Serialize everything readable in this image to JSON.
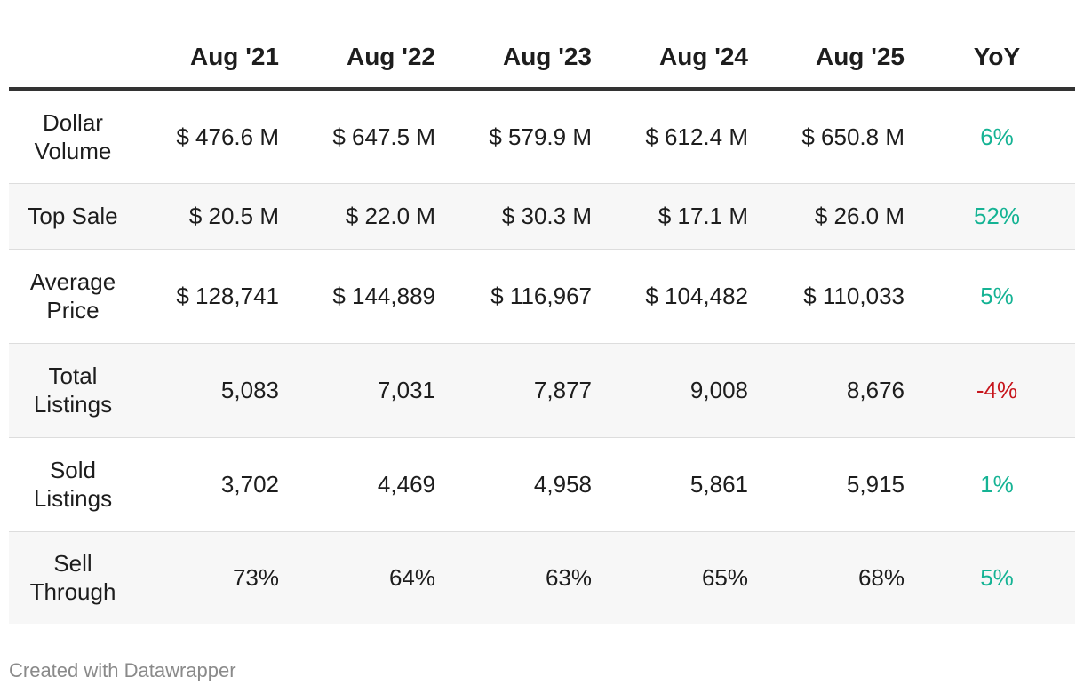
{
  "chart_data": {
    "type": "table",
    "columns": [
      "",
      "Aug '21",
      "Aug '22",
      "Aug '23",
      "Aug '24",
      "Aug '25",
      "YoY"
    ],
    "rows": [
      {
        "label": "Dollar Volume",
        "values": [
          "$ 476.6 M",
          "$ 647.5 M",
          "$ 579.9 M",
          "$ 612.4 M",
          "$ 650.8 M"
        ],
        "yoy": "6%"
      },
      {
        "label": "Top Sale",
        "values": [
          "$ 20.5 M",
          "$ 22.0 M",
          "$ 30.3 M",
          "$ 17.1 M",
          "$ 26.0 M"
        ],
        "yoy": "52%"
      },
      {
        "label": "Average Price",
        "values": [
          "$ 128,741",
          "$ 144,889",
          "$ 116,967",
          "$ 104,482",
          "$ 110,033"
        ],
        "yoy": "5%"
      },
      {
        "label": "Total Listings",
        "values": [
          "5,083",
          "7,031",
          "7,877",
          "9,008",
          "8,676"
        ],
        "yoy": "-4%"
      },
      {
        "label": "Sold Listings",
        "values": [
          "3,702",
          "4,469",
          "4,958",
          "5,861",
          "5,915"
        ],
        "yoy": "1%"
      },
      {
        "label": "Sell Through",
        "values": [
          "73%",
          "64%",
          "63%",
          "65%",
          "68%"
        ],
        "yoy": "5%"
      }
    ],
    "colors": {
      "positive": "#15b394",
      "negative": "#c7161d",
      "stripe": "#f7f7f7",
      "header_rule": "#333333"
    }
  },
  "footer": {
    "credit": "Created with Datawrapper"
  }
}
